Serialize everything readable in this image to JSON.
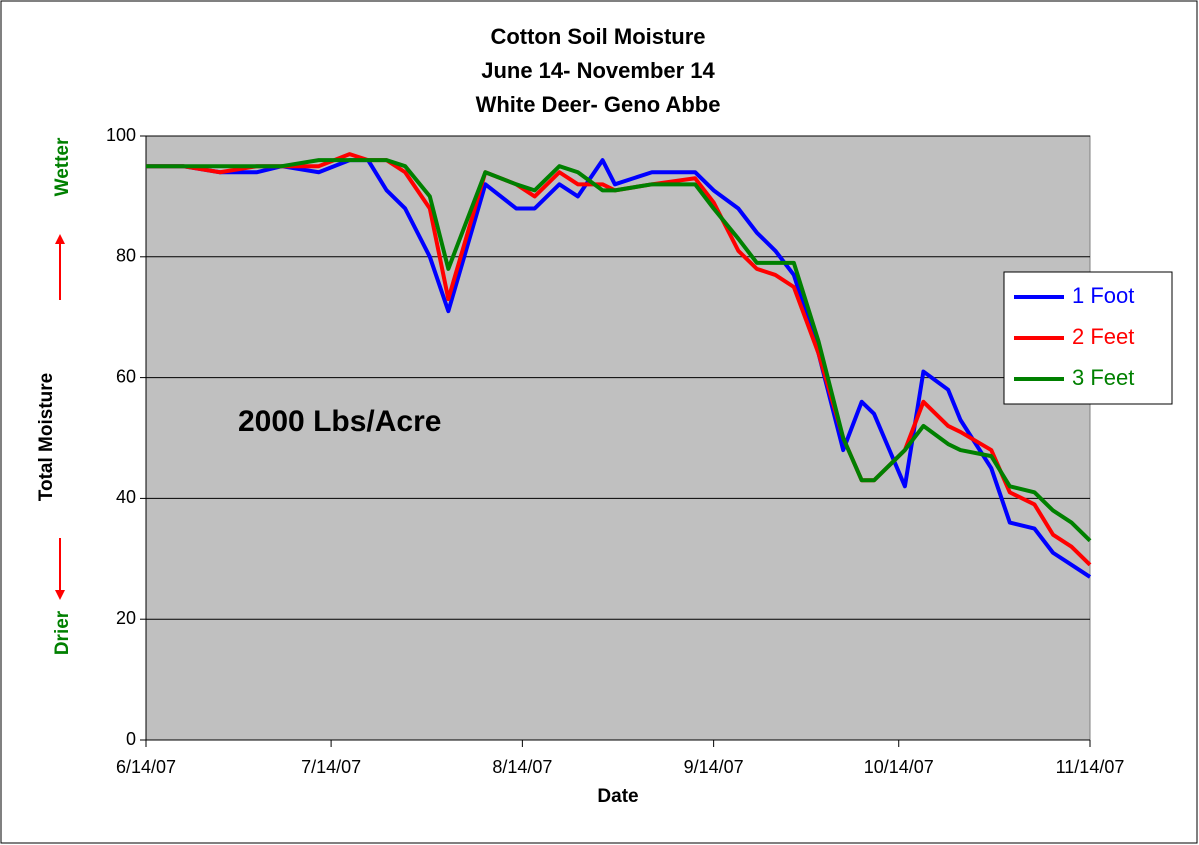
{
  "chart_data": {
    "type": "line",
    "title": [
      "Cotton Soil Moisture",
      "June 14- November 14",
      "White Deer- Geno Abbe"
    ],
    "x_label": "Date",
    "y_label": "Total Moisture",
    "annotations": [
      "Wetter",
      "Drier",
      "2000 Lbs/Acre"
    ],
    "x": [
      "2007-06-14",
      "2007-06-20",
      "2007-06-26",
      "2007-07-02",
      "2007-07-06",
      "2007-07-12",
      "2007-07-17",
      "2007-07-20",
      "2007-07-23",
      "2007-07-26",
      "2007-07-30",
      "2007-08-02",
      "2007-08-08",
      "2007-08-13",
      "2007-08-16",
      "2007-08-20",
      "2007-08-23",
      "2007-08-27",
      "2007-08-29",
      "2007-09-04",
      "2007-09-11",
      "2007-09-14",
      "2007-09-18",
      "2007-09-21",
      "2007-09-24",
      "2007-09-27",
      "2007-10-01",
      "2007-10-05",
      "2007-10-08",
      "2007-10-10",
      "2007-10-15",
      "2007-10-18",
      "2007-10-22",
      "2007-10-24",
      "2007-10-29",
      "2007-11-01",
      "2007-11-05",
      "2007-11-08",
      "2007-11-11",
      "2007-11-14"
    ],
    "series": [
      {
        "name": "1 Foot",
        "color": "#0000ff",
        "values": [
          95,
          95,
          94,
          94,
          95,
          94,
          96,
          96,
          91,
          88,
          80,
          71,
          92,
          88,
          88,
          92,
          90,
          96,
          92,
          94,
          94,
          91,
          88,
          84,
          81,
          77,
          64,
          48,
          56,
          54,
          42,
          61,
          58,
          53,
          45,
          36,
          35,
          31,
          29,
          27
        ]
      },
      {
        "name": "2 Feet",
        "color": "#ff0000",
        "values": [
          95,
          95,
          94,
          95,
          95,
          95,
          97,
          96,
          96,
          94,
          88,
          73,
          94,
          92,
          90,
          94,
          92,
          92,
          91,
          92,
          93,
          89,
          81,
          78,
          77,
          75,
          64,
          50,
          43,
          43,
          48,
          56,
          52,
          51,
          48,
          41,
          39,
          34,
          32,
          29
        ]
      },
      {
        "name": "3 Feet",
        "color": "#008000",
        "values": [
          95,
          95,
          95,
          95,
          95,
          96,
          96,
          96,
          96,
          95,
          90,
          78,
          94,
          92,
          91,
          95,
          94,
          91,
          91,
          92,
          92,
          88,
          83,
          79,
          79,
          79,
          66,
          50,
          43,
          43,
          48,
          52,
          49,
          48,
          47,
          42,
          41,
          38,
          36,
          33
        ]
      }
    ],
    "xlim": [
      "2007-06-14",
      "2007-11-14"
    ],
    "xticks": [
      {
        "value": "2007-06-14",
        "label": "6/14/07"
      },
      {
        "value": "2007-07-14",
        "label": "7/14/07"
      },
      {
        "value": "2007-08-14",
        "label": "8/14/07"
      },
      {
        "value": "2007-09-14",
        "label": "9/14/07"
      },
      {
        "value": "2007-10-14",
        "label": "10/14/07"
      },
      {
        "value": "2007-11-14",
        "label": "11/14/07"
      }
    ],
    "ylim": [
      0,
      100
    ],
    "yticks": [
      0,
      20,
      40,
      60,
      80,
      100
    ],
    "grid": true,
    "legend": "right",
    "background": "#c0c0c0"
  }
}
